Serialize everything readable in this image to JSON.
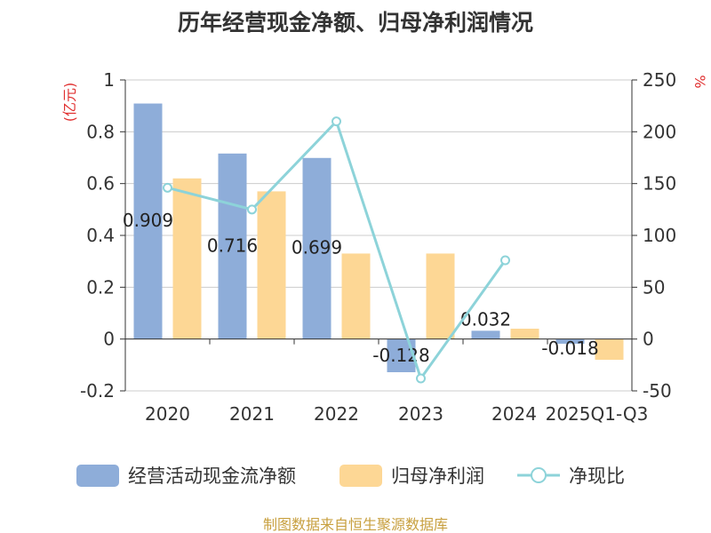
{
  "chart_data": {
    "type": "bar",
    "title": "历年经营现金净额、归母净利润情况",
    "ylabel_left": "(亿元)",
    "ylabel_right": "%",
    "categories": [
      "2020",
      "2021",
      "2022",
      "2023",
      "2024",
      "2025Q1-Q3"
    ],
    "ylim_left": [
      -0.2,
      1
    ],
    "yticks_left": [
      -0.2,
      0,
      0.2,
      0.4,
      0.6,
      0.8,
      1
    ],
    "ytick_labels_left": [
      "-0.2",
      "0",
      "0.2",
      "0.4",
      "0.6",
      "0.8",
      "1"
    ],
    "ylim_right": [
      -50,
      250
    ],
    "yticks_right": [
      -50,
      0,
      50,
      100,
      150,
      200,
      250
    ],
    "ytick_labels_right": [
      "-50",
      "0",
      "50",
      "100",
      "150",
      "200",
      "250"
    ],
    "series": [
      {
        "name": "经营活动现金流净额",
        "kind": "bar",
        "axis": "left",
        "color": "#8eadd9",
        "values": [
          0.909,
          0.716,
          0.699,
          -0.128,
          0.032,
          -0.018
        ],
        "labels": [
          "0.909",
          "0.716",
          "0.699",
          "-0.128",
          "0.032",
          "-0.018"
        ]
      },
      {
        "name": "归母净利润",
        "kind": "bar",
        "axis": "left",
        "color": "#fdd795",
        "values": [
          0.62,
          0.57,
          0.33,
          0.33,
          0.04,
          -0.08
        ]
      },
      {
        "name": "净现比",
        "kind": "line",
        "axis": "right",
        "color": "#8dd3d9",
        "values": [
          146,
          125,
          210,
          -38,
          76,
          null
        ]
      }
    ],
    "legend_position": "bottom",
    "grid": true
  },
  "footer": {
    "source": "制图数据来自恒生聚源数据库"
  },
  "colors": {
    "title": "#333333",
    "axis_label": "#e03030",
    "source": "#c8a040",
    "grid": "#cccccc",
    "axis": "#333333",
    "tick_text": "#333333"
  }
}
